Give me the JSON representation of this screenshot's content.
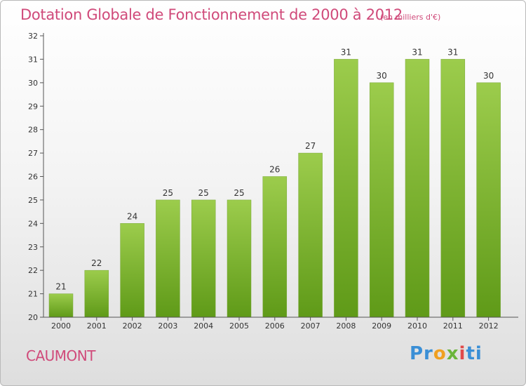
{
  "chart_data": {
    "type": "bar",
    "title": "Dotation Globale de Fonctionnement de 2000 à 2012",
    "subtitle": "(en milliers d'€)",
    "categories": [
      "2000",
      "2001",
      "2002",
      "2003",
      "2004",
      "2005",
      "2006",
      "2007",
      "2008",
      "2009",
      "2010",
      "2011",
      "2012"
    ],
    "values": [
      21,
      22,
      24,
      25,
      25,
      25,
      26,
      27,
      31,
      30,
      31,
      31,
      30
    ],
    "ylim": [
      20,
      32
    ],
    "yticks": [
      20,
      21,
      22,
      23,
      24,
      25,
      26,
      27,
      28,
      29,
      30,
      31,
      32
    ],
    "xlabel": "",
    "ylabel": "",
    "grid": false,
    "bar_color_top": "#9ccc4c",
    "bar_color_bottom": "#5f9a18"
  },
  "footer": {
    "commune": "CAUMONT",
    "logo": {
      "part1": "Pr",
      "part2": "o",
      "part3": "x",
      "part4": "i",
      "part5": "ti"
    }
  },
  "colors": {
    "title": "#d04a7a",
    "axis": "#555555"
  }
}
